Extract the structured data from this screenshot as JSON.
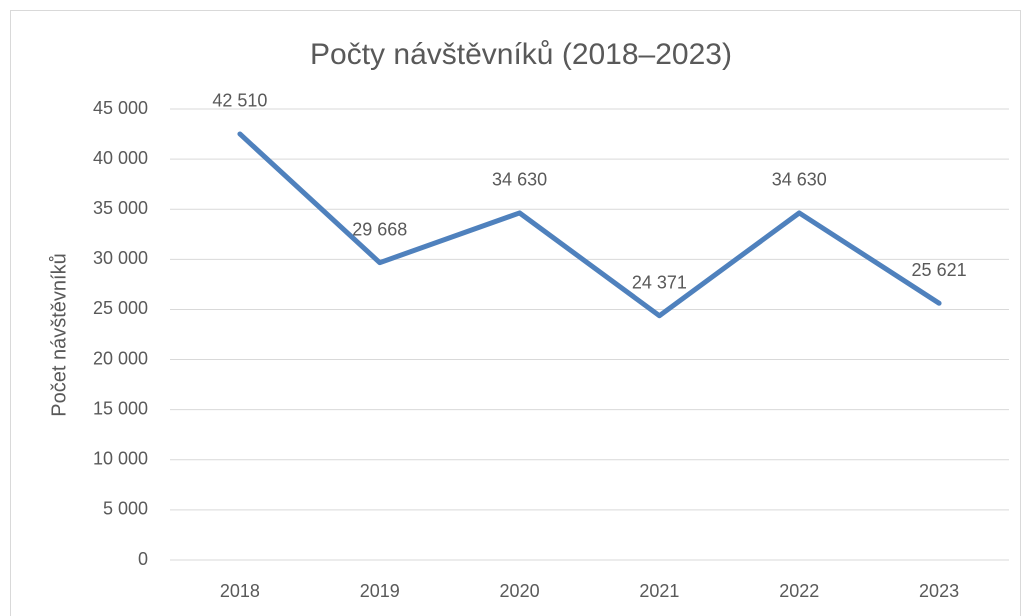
{
  "chart_data": {
    "type": "line",
    "title": "Počty návštěvníků (2018–2023)",
    "y_label": "Počet návštěvníků",
    "categories": [
      "2018",
      "2019",
      "2020",
      "2021",
      "2022",
      "2023"
    ],
    "series": [
      {
        "name": "Počet návštěvníků",
        "color": "#4f81bd",
        "values": [
          42510,
          29668,
          34630,
          24371,
          34630,
          25621
        ],
        "value_labels": [
          "42 510",
          "29 668",
          "34 630",
          "24 371",
          "34 630",
          "25 621"
        ]
      }
    ],
    "ylim": [
      0,
      45000
    ],
    "yticks": [
      0,
      {
        "value": 5000,
        "label": "5 000"
      },
      {
        "value": 10000,
        "label": "10 000"
      },
      {
        "value": 15000,
        "label": "15 000"
      },
      {
        "value": 20000,
        "label": "20 000"
      },
      {
        "value": 25000,
        "label": "25 000"
      },
      {
        "value": 30000,
        "label": "30 000"
      },
      {
        "value": 35000,
        "label": "35 000"
      },
      {
        "value": 40000,
        "label": "40 000"
      },
      {
        "value": 45000,
        "label": "45 000"
      }
    ],
    "grid": true
  }
}
